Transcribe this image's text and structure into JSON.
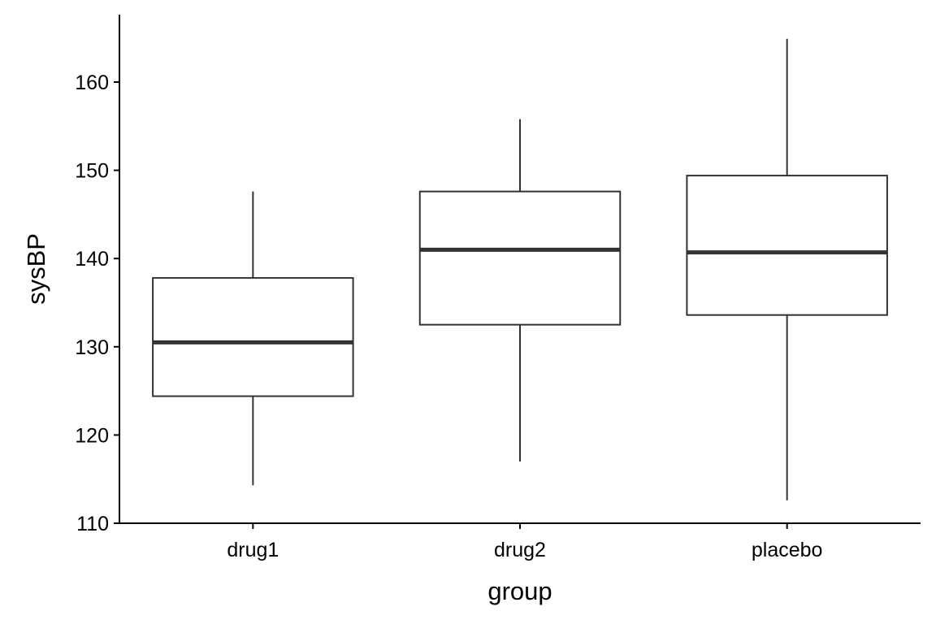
{
  "chart_data": {
    "type": "box",
    "title": "",
    "xlabel": "group",
    "ylabel": "sysBP",
    "categories": [
      "drug1",
      "drug2",
      "placebo"
    ],
    "y_ticks": [
      110,
      120,
      130,
      140,
      150,
      160
    ],
    "y_tick_labels": [
      "110",
      "120",
      "130",
      "140",
      "150",
      "160"
    ],
    "ylim": [
      110,
      167
    ],
    "grid": false,
    "legend": "none",
    "boxes": [
      {
        "category": "drug1",
        "min": 114.3,
        "q1": 124.4,
        "median": 130.5,
        "q3": 137.8,
        "max": 147.6
      },
      {
        "category": "drug2",
        "min": 117.0,
        "q1": 132.5,
        "median": 141.0,
        "q3": 147.6,
        "max": 155.8
      },
      {
        "category": "placebo",
        "min": 112.6,
        "q1": 133.6,
        "median": 140.7,
        "q3": 149.4,
        "max": 164.9
      }
    ],
    "colors": {
      "box_outline": "#333333",
      "box_fill": "#ffffff",
      "axis": "#000000"
    }
  }
}
